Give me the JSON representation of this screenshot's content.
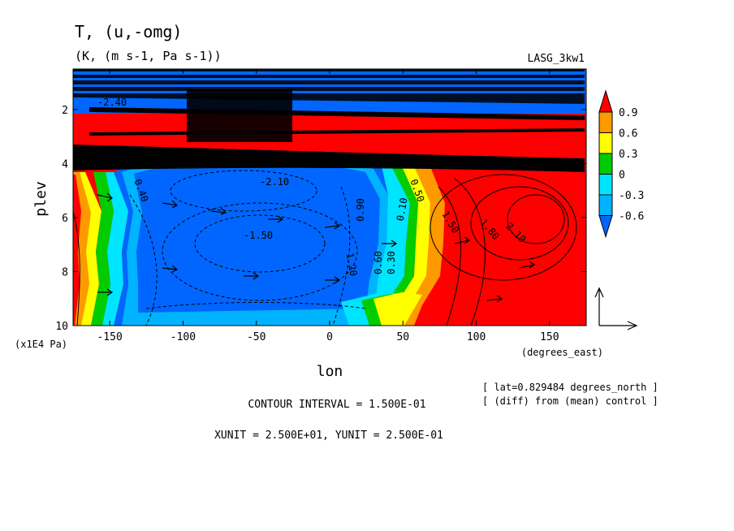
{
  "chart_data": {
    "type": "heatmap",
    "title": "T, (u,-omg)",
    "subtitle": "(K, (m s-1, Pa s-1))",
    "experiment": "LASG_3kw1",
    "xlabel": "lon",
    "ylabel": "plev",
    "x_unit": "(degrees_east)",
    "y_unit": "(x1E4 Pa)",
    "xlim": [
      -175,
      175
    ],
    "ylim": [
      10,
      0.5
    ],
    "x_ticks": [
      -150,
      -100,
      -50,
      0,
      50,
      100,
      150
    ],
    "y_ticks": [
      2,
      4,
      6,
      8,
      10
    ],
    "colorbar": {
      "levels": [
        0.9,
        0.6,
        0.3,
        0,
        -0.3,
        -0.6
      ],
      "colors": [
        "#ff0000",
        "#ff9900",
        "#ffff00",
        "#00cc00",
        "#00e5ff",
        "#00b3ff",
        "#0066ff"
      ],
      "extend": "both"
    },
    "contour_labels": [
      "-1.50",
      "-2.10",
      "-2.40",
      "0.60",
      "0.30",
      "0.90",
      "1.20",
      "1.50",
      "1.80",
      "2.10",
      "0.50",
      "0.40",
      "0.10"
    ],
    "notes": {
      "location": "[ lat=0.829484 degrees_north ]",
      "diff": "[ (diff) from (mean) control ]",
      "contour_interval": "CONTOUR INTERVAL = 1.500E-01",
      "units": "XUNIT = 2.500E+01, YUNIT = 2.500E-01"
    }
  },
  "colors": {
    "red": "#ff0000",
    "blue": "#0066ff",
    "cyan": "#00b3ff",
    "orange": "#ff9900"
  }
}
